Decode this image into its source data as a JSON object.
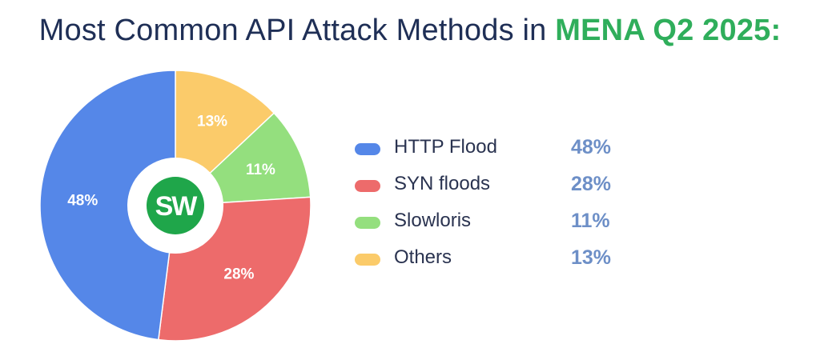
{
  "title": {
    "prefix": "Most Common API Attack Methods in",
    "highlight": "MENA Q2 2025:"
  },
  "logo": {
    "text": "SW",
    "color": "#1fa64a"
  },
  "colors": {
    "title": "#1f2f56",
    "highlight": "#2fae5b",
    "legend_value": "#6d8fc7"
  },
  "chart_data": {
    "type": "pie",
    "title": "Most Common API Attack Methods in MENA Q2 2025:",
    "donut": true,
    "categories": [
      "HTTP Flood",
      "SYN floods",
      "Slowloris",
      "Others"
    ],
    "values": [
      48,
      28,
      11,
      13
    ],
    "labels": [
      "48%",
      "28%",
      "11%",
      "13%"
    ],
    "colors": [
      "#5587e8",
      "#ed6b6b",
      "#94df7e",
      "#fbcb6a"
    ],
    "legend_position": "right"
  }
}
